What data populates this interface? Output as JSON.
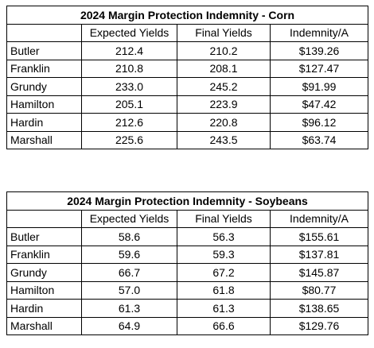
{
  "tables": [
    {
      "title": "2024 Margin Protection Indemnity - Corn",
      "headers": [
        "",
        "Expected Yields",
        "Final Yields",
        "Indemnity/A"
      ],
      "rows": [
        [
          "Butler",
          "212.4",
          "210.2",
          "$139.26"
        ],
        [
          "Franklin",
          "210.8",
          "208.1",
          "$127.47"
        ],
        [
          "Grundy",
          "233.0",
          "245.2",
          "$91.99"
        ],
        [
          "Hamilton",
          "205.1",
          "223.9",
          "$47.42"
        ],
        [
          "Hardin",
          "212.6",
          "220.8",
          "$96.12"
        ],
        [
          "Marshall",
          "225.6",
          "243.5",
          "$63.74"
        ]
      ]
    },
    {
      "title": "2024 Margin Protection Indemnity - Soybeans",
      "headers": [
        "",
        "Expected Yields",
        "Final Yields",
        "Indemnity/A"
      ],
      "rows": [
        [
          "Butler",
          "58.6",
          "56.3",
          "$155.61"
        ],
        [
          "Franklin",
          "59.6",
          "59.3",
          "$137.81"
        ],
        [
          "Grundy",
          "66.7",
          "67.2",
          "$145.87"
        ],
        [
          "Hamilton",
          "57.0",
          "61.8",
          "$80.77"
        ],
        [
          "Hardin",
          "61.3",
          "61.3",
          "$138.65"
        ],
        [
          "Marshall",
          "64.9",
          "66.6",
          "$129.76"
        ]
      ]
    }
  ]
}
